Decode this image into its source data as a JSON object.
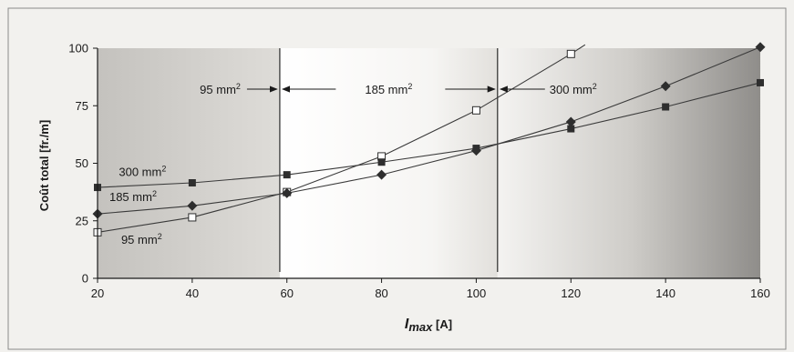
{
  "chart_data": {
    "type": "line",
    "title": "",
    "xlabel_main": "I",
    "xlabel_sub": "max",
    "xlabel_unit": " [A]",
    "ylabel": "Coût total [fr./m]",
    "xlim": [
      20,
      160
    ],
    "ylim": [
      0,
      100
    ],
    "xticks": [
      20,
      40,
      60,
      80,
      100,
      120,
      140,
      160
    ],
    "yticks": [
      0,
      25,
      50,
      75,
      100
    ],
    "grid": false,
    "series": [
      {
        "name": "95 mm²",
        "marker": "open-square",
        "x": [
          20,
          40,
          60,
          80,
          100,
          120
        ],
        "y": [
          20,
          26.5,
          37.5,
          53,
          73,
          97.5
        ],
        "extension": {
          "x": 123,
          "y": 101.5
        }
      },
      {
        "name": "185 mm²",
        "marker": "diamond",
        "x": [
          20,
          40,
          60,
          80,
          100,
          120,
          140,
          160
        ],
        "y": [
          28,
          31.5,
          37,
          45,
          55.5,
          68,
          83.5,
          100.5
        ]
      },
      {
        "name": "300 mm²",
        "marker": "filled-square",
        "x": [
          20,
          40,
          60,
          80,
          100,
          120,
          140,
          160
        ],
        "y": [
          39.5,
          41.5,
          45,
          50.5,
          56.5,
          65,
          74.5,
          85
        ]
      }
    ],
    "regions": [
      {
        "label": "95 mm",
        "sup": "2",
        "from": 20,
        "to": 58.5
      },
      {
        "label": "185 mm",
        "sup": "2",
        "from": 58.5,
        "to": 104.5
      },
      {
        "label": "300 mm",
        "sup": "2",
        "from": 104.5,
        "to": 160
      }
    ],
    "series_labels": [
      {
        "series": "300 mm²",
        "text": "300 mm",
        "sup": "2"
      },
      {
        "series": "185 mm²",
        "text": "185 mm",
        "sup": "2"
      },
      {
        "series": "95 mm²",
        "text": "95 mm",
        "sup": "2"
      }
    ],
    "colors": {
      "line": "#3a3a3a",
      "marker": "#2e2e2e",
      "plot_shade_dark": "#8f8d8a",
      "plot_shade_light": "#ffffff",
      "frame_background": "#f2f1ee"
    }
  }
}
